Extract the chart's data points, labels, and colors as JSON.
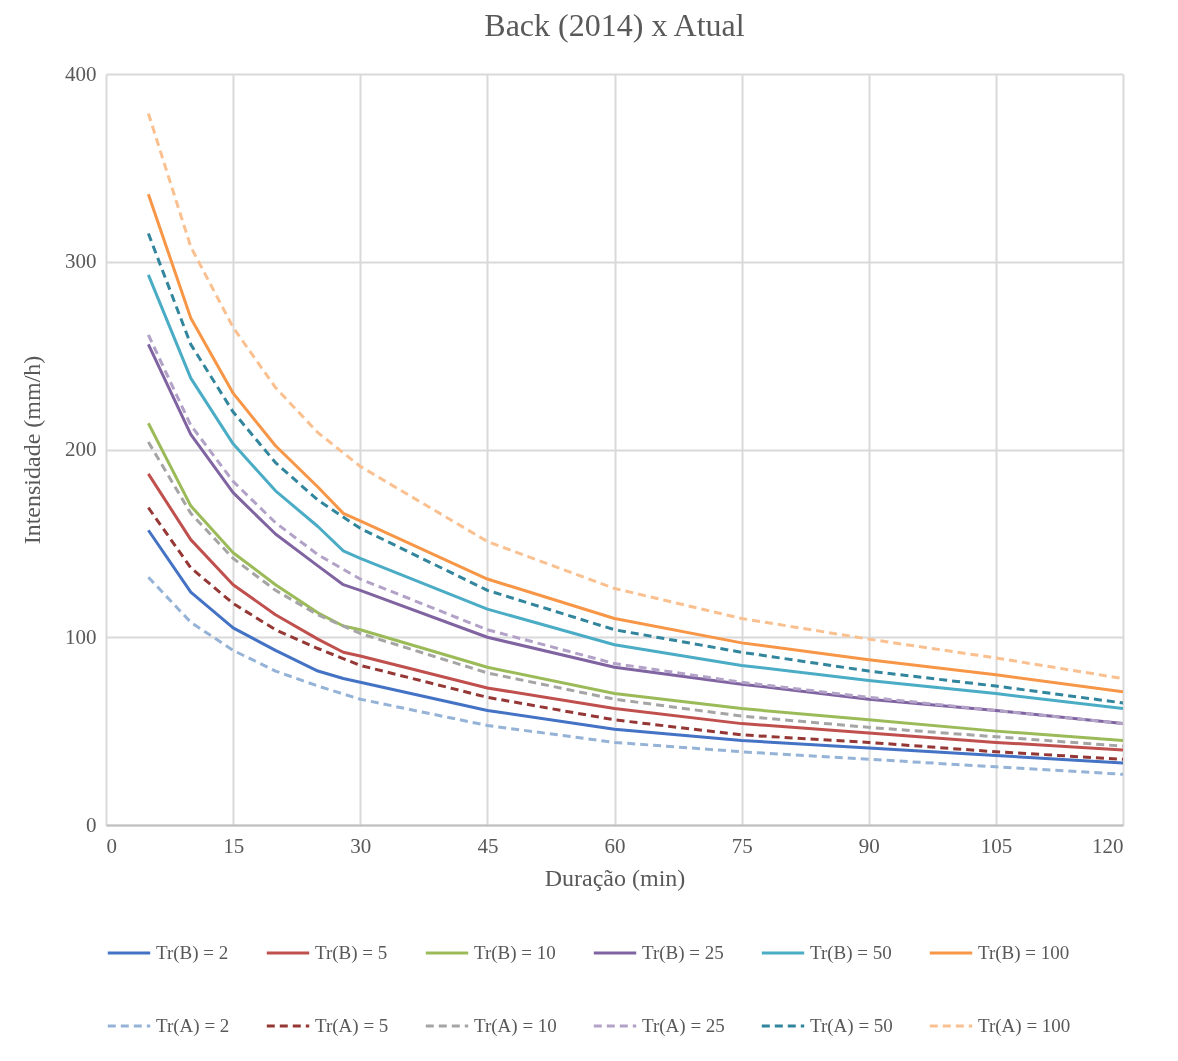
{
  "chart_data": {
    "type": "line",
    "title": "Back (2014) x Atual",
    "xlabel": "Duração (min)",
    "ylabel": "Intensidade (mm/h)",
    "xlim": [
      0,
      120
    ],
    "xticks": [
      0,
      15,
      30,
      45,
      60,
      75,
      90,
      105,
      120
    ],
    "ylim": [
      0,
      400
    ],
    "yticks": [
      0,
      100,
      200,
      300,
      400
    ],
    "grid": true,
    "legend": "bottom",
    "marker": "none",
    "series": [
      {
        "name": "Tr(B) = 2",
        "color": "#4472c4",
        "line_style": "solid",
        "x": [
          5,
          10,
          15,
          20,
          25,
          28,
          30,
          45,
          60,
          75,
          90,
          105,
          120
        ],
        "values": [
          157,
          124,
          105,
          93,
          82,
          78,
          76,
          61,
          51,
          45,
          41,
          37,
          33
        ]
      },
      {
        "name": "Tr(B) = 5",
        "color": "#c0504d",
        "line_style": "solid",
        "x": [
          5,
          10,
          15,
          20,
          25,
          28,
          30,
          45,
          60,
          75,
          90,
          105,
          120
        ],
        "values": [
          187,
          152,
          128,
          112,
          99,
          92,
          90,
          73,
          62,
          54,
          49,
          44,
          40
        ]
      },
      {
        "name": "Tr(B) = 10",
        "color": "#9bbb59",
        "line_style": "solid",
        "x": [
          5,
          10,
          15,
          20,
          25,
          28,
          30,
          45,
          60,
          75,
          90,
          105,
          120
        ],
        "values": [
          214,
          170,
          145,
          128,
          113,
          106,
          104,
          84,
          70,
          62,
          56,
          50,
          45
        ]
      },
      {
        "name": "Tr(B) = 25",
        "color": "#8064a2",
        "line_style": "solid",
        "x": [
          5,
          10,
          15,
          20,
          25,
          28,
          30,
          45,
          60,
          75,
          90,
          105,
          120
        ],
        "values": [
          256,
          208,
          177,
          155,
          138,
          128,
          125,
          100,
          84,
          75,
          67,
          61,
          54
        ]
      },
      {
        "name": "Tr(B) = 50",
        "color": "#4bacc6",
        "line_style": "solid",
        "x": [
          5,
          10,
          15,
          20,
          25,
          28,
          30,
          45,
          60,
          75,
          90,
          105,
          120
        ],
        "values": [
          293,
          238,
          203,
          178,
          159,
          146,
          142,
          115,
          96,
          85,
          77,
          70,
          62
        ]
      },
      {
        "name": "Tr(B) = 100",
        "color": "#f79646",
        "line_style": "solid",
        "x": [
          5,
          10,
          15,
          20,
          25,
          28,
          30,
          45,
          60,
          75,
          90,
          105,
          120
        ],
        "values": [
          336,
          270,
          230,
          202,
          180,
          166,
          162,
          131,
          110,
          97,
          88,
          80,
          71
        ]
      },
      {
        "name": "Tr(A) = 2",
        "color": "#95b3d7",
        "line_style": "dashed",
        "x": [
          5,
          10,
          15,
          20,
          25,
          30,
          45,
          60,
          75,
          90,
          105,
          120
        ],
        "values": [
          132,
          108,
          93,
          82,
          74,
          67,
          53,
          44,
          39,
          35,
          31,
          27
        ]
      },
      {
        "name": "Tr(A) = 5",
        "color": "#953735",
        "line_style": "dashed",
        "x": [
          5,
          10,
          15,
          20,
          25,
          30,
          45,
          60,
          75,
          90,
          105,
          120
        ],
        "values": [
          169,
          137,
          118,
          104,
          94,
          85,
          68,
          56,
          48,
          44,
          39,
          35
        ]
      },
      {
        "name": "Tr(A) = 10",
        "color": "#a5a5a5",
        "line_style": "dashed",
        "x": [
          5,
          10,
          15,
          20,
          25,
          30,
          45,
          60,
          75,
          90,
          105,
          120
        ],
        "values": [
          204,
          166,
          142,
          125,
          112,
          102,
          81,
          67,
          58,
          52,
          47,
          42
        ]
      },
      {
        "name": "Tr(A) = 25",
        "color": "#b3a2c7",
        "line_style": "dashed",
        "x": [
          5,
          10,
          15,
          20,
          25,
          30,
          45,
          60,
          75,
          90,
          105,
          120
        ],
        "values": [
          261,
          213,
          183,
          161,
          144,
          131,
          104,
          86,
          76,
          68,
          61,
          54
        ]
      },
      {
        "name": "Tr(A) = 50",
        "color": "#31859c",
        "line_style": "dashed",
        "x": [
          5,
          10,
          15,
          20,
          25,
          30,
          45,
          60,
          75,
          90,
          105,
          120
        ],
        "values": [
          315,
          256,
          220,
          193,
          173,
          158,
          125,
          104,
          92,
          82,
          74,
          65
        ]
      },
      {
        "name": "Tr(A) = 100",
        "color": "#fac090",
        "line_style": "dashed",
        "x": [
          5,
          10,
          15,
          20,
          25,
          30,
          45,
          60,
          75,
          90,
          105,
          120
        ],
        "values": [
          379,
          308,
          265,
          233,
          209,
          191,
          151,
          126,
          110,
          99,
          89,
          78
        ]
      }
    ]
  }
}
